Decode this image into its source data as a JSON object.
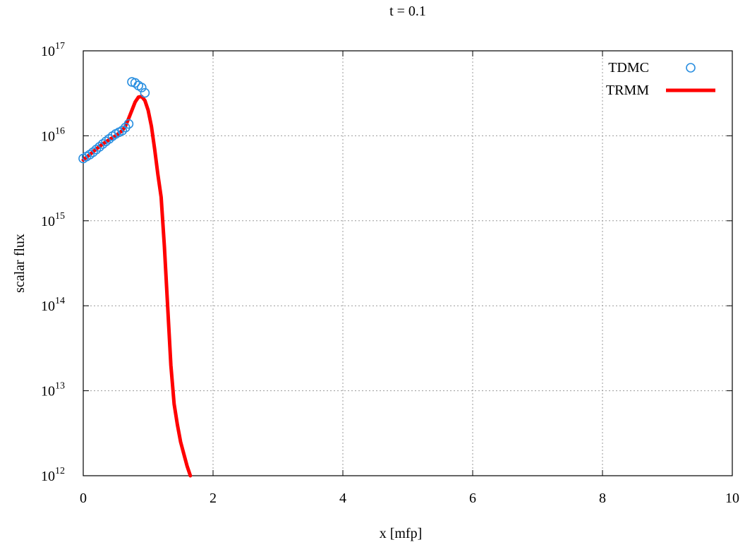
{
  "chart_data": {
    "type": "line",
    "title": "t = 0.1",
    "xlabel": "x [mfp]",
    "ylabel": "scalar flux",
    "xlim": [
      0,
      10
    ],
    "ylim": [
      1000000000000.0,
      1e+17
    ],
    "yscale": "log",
    "grid": true,
    "legend_position": "top-right",
    "x_ticks": [
      {
        "value": 0,
        "label": "0"
      },
      {
        "value": 2,
        "label": "2"
      },
      {
        "value": 4,
        "label": "4"
      },
      {
        "value": 6,
        "label": "6"
      },
      {
        "value": 8,
        "label": "8"
      },
      {
        "value": 10,
        "label": "10"
      }
    ],
    "y_ticks": [
      {
        "value": 1000000000000.0,
        "base": "10",
        "exp": "12"
      },
      {
        "value": 10000000000000.0,
        "base": "10",
        "exp": "13"
      },
      {
        "value": 100000000000000.0,
        "base": "10",
        "exp": "14"
      },
      {
        "value": 1000000000000000.0,
        "base": "10",
        "exp": "15"
      },
      {
        "value": 1e+16,
        "base": "10",
        "exp": "16"
      },
      {
        "value": 1e+17,
        "base": "10",
        "exp": "17"
      }
    ],
    "series": [
      {
        "name": "TDMC",
        "style": "markers",
        "marker": "circle",
        "color": "#2a8fe0",
        "points": [
          [
            0.0,
            5400000000000000.0
          ],
          [
            0.05,
            5700000000000000.0
          ],
          [
            0.1,
            6000000000000000.0
          ],
          [
            0.15,
            6400000000000000.0
          ],
          [
            0.2,
            6900000000000000.0
          ],
          [
            0.25,
            7400000000000000.0
          ],
          [
            0.3,
            8000000000000000.0
          ],
          [
            0.35,
            8600000000000000.0
          ],
          [
            0.4,
            9200000000000000.0
          ],
          [
            0.45,
            9900000000000000.0
          ],
          [
            0.5,
            1.05e+16
          ],
          [
            0.55,
            1.1e+16
          ],
          [
            0.6,
            1.15e+16
          ],
          [
            0.65,
            1.25e+16
          ],
          [
            0.7,
            1.38e+16
          ],
          [
            0.75,
            4.3e+16
          ],
          [
            0.8,
            4.2e+16
          ],
          [
            0.85,
            3.9e+16
          ],
          [
            0.9,
            3.7e+16
          ],
          [
            0.95,
            3.2e+16
          ]
        ]
      },
      {
        "name": "TRMM",
        "style": "line",
        "color": "#ff0000",
        "points": [
          [
            0.0,
            5200000000000000.0
          ],
          [
            0.1,
            6000000000000000.0
          ],
          [
            0.2,
            7000000000000000.0
          ],
          [
            0.3,
            8000000000000000.0
          ],
          [
            0.4,
            9000000000000000.0
          ],
          [
            0.5,
            1e+16
          ],
          [
            0.6,
            1.15e+16
          ],
          [
            0.65,
            1.3e+16
          ],
          [
            0.7,
            1.6e+16
          ],
          [
            0.75,
            2e+16
          ],
          [
            0.8,
            2.5e+16
          ],
          [
            0.85,
            2.85e+16
          ],
          [
            0.9,
            2.9e+16
          ],
          [
            0.95,
            2.6e+16
          ],
          [
            1.0,
            2e+16
          ],
          [
            1.05,
            1.3e+16
          ],
          [
            1.1,
            7000000000000000.0
          ],
          [
            1.15,
            3500000000000000.0
          ],
          [
            1.2,
            1900000000000000.0
          ],
          [
            1.25,
            500000000000000.0
          ],
          [
            1.3,
            100000000000000.0
          ],
          [
            1.35,
            20000000000000.0
          ],
          [
            1.4,
            7000000000000.0
          ],
          [
            1.45,
            4000000000000.0
          ],
          [
            1.5,
            2500000000000.0
          ],
          [
            1.55,
            1800000000000.0
          ],
          [
            1.6,
            1300000000000.0
          ],
          [
            1.65,
            1000000000000.0
          ]
        ]
      }
    ]
  }
}
